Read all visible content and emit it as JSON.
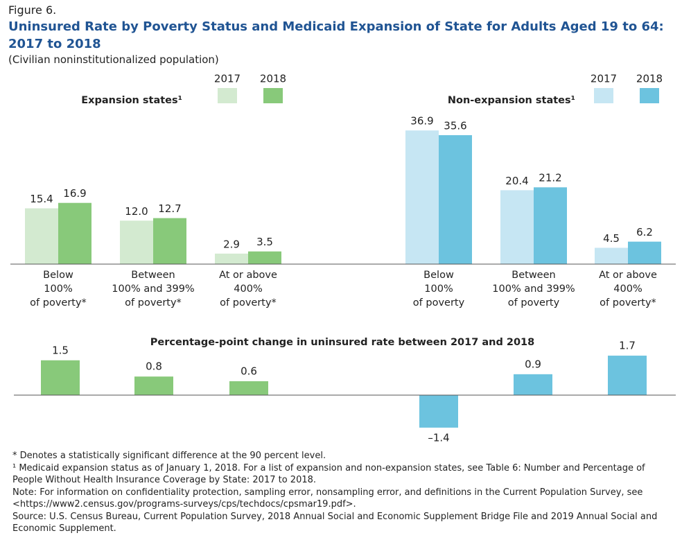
{
  "figure_label": "Figure 6.",
  "title": "Uninsured Rate by Poverty Status and Medicaid Expansion of State for Adults Aged 19 to 64:\n2017 to 2018",
  "subtitle": "(Civilian noninstitutionalized population)",
  "chart_data": [
    {
      "type": "bar",
      "title": "Expansion states¹",
      "categories": [
        "Below\n100%\nof poverty*",
        "Between\n100% and 399%\nof poverty*",
        "At or above\n400%\nof poverty*"
      ],
      "series": [
        {
          "name": "2017",
          "color": "#d3ead0",
          "values": [
            15.4,
            12.0,
            2.9
          ],
          "value_labels": [
            "15.4",
            "12.0",
            "2.9"
          ]
        },
        {
          "name": "2018",
          "color": "#88c97a",
          "values": [
            16.9,
            12.7,
            3.5
          ],
          "value_labels": [
            "16.9",
            "12.7",
            "3.5"
          ]
        }
      ],
      "ylim": [
        0,
        40
      ]
    },
    {
      "type": "bar",
      "title": "Non-expansion states¹",
      "categories": [
        "Below\n100%\nof poverty",
        "Between\n100% and 399%\nof poverty",
        "At or above\n400%\nof poverty*"
      ],
      "series": [
        {
          "name": "2017",
          "color": "#c6e6f3",
          "values": [
            36.9,
            20.4,
            4.5
          ],
          "value_labels": [
            "36.9",
            "20.4",
            "4.5"
          ]
        },
        {
          "name": "2018",
          "color": "#6cc3df",
          "values": [
            35.6,
            21.2,
            6.2
          ],
          "value_labels": [
            "35.6",
            "21.2",
            "6.2"
          ]
        }
      ],
      "ylim": [
        0,
        40
      ]
    },
    {
      "type": "change",
      "title": "Percentage-point change in uninsured rate between 2017 and 2018",
      "values": [
        1.5,
        0.8,
        0.6,
        -1.4,
        0.9,
        1.7
      ],
      "value_labels": [
        "1.5",
        "0.8",
        "0.6",
        "–1.4",
        "0.9",
        "1.7"
      ],
      "colors": [
        "#88c97a",
        "#88c97a",
        "#88c97a",
        "#6cc3df",
        "#6cc3df",
        "#6cc3df"
      ],
      "ylim": [
        -1.6,
        2.0
      ]
    }
  ],
  "notes": [
    "* Denotes a statistically significant difference at the 90 percent level.",
    "¹ Medicaid expansion status as of January 1, 2018. For a list of expansion and non-expansion states, see Table 6: Number and Percentage of People Without Health Insurance Coverage by State: 2017 to 2018.",
    "Note: For information on confidentiality protection, sampling error, nonsampling error, and definitions in the Current Population Survey, see <https://www2.census.gov/programs-surveys/cps/techdocs/cpsmar19.pdf>.",
    "Source: U.S. Census Bureau, Current Population Survey, 2018 Annual Social and Economic Supplement Bridge File and 2019 Annual Social and Economic Supplement."
  ]
}
